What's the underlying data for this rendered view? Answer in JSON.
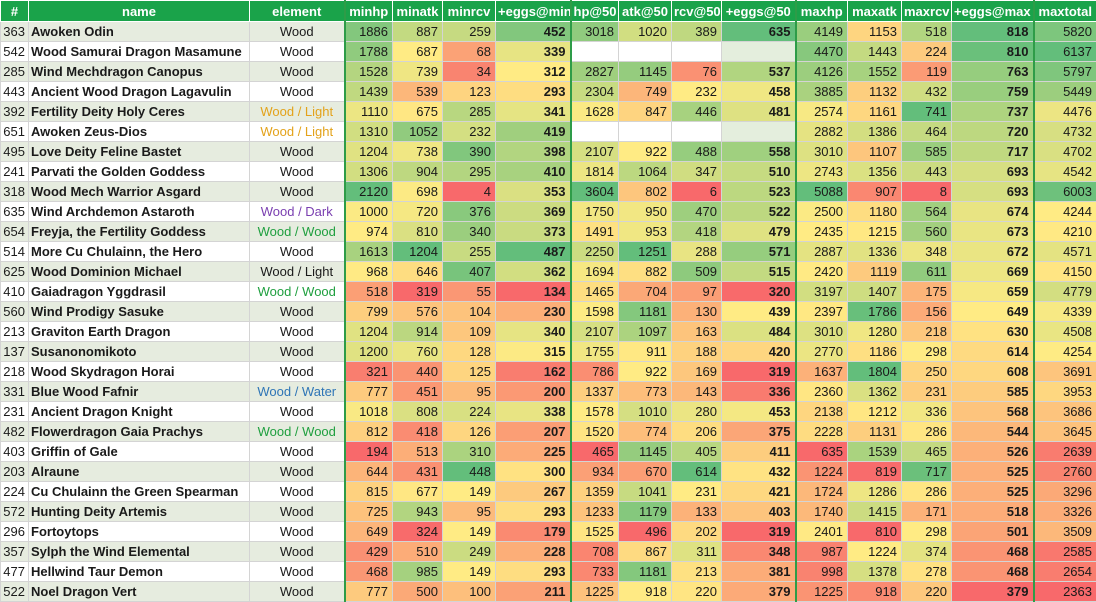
{
  "colors": {
    "header_bg": "#1aa34a",
    "header_text": "#ffffff",
    "scale_low": "#f8696b",
    "scale_mid": "#ffeb84",
    "scale_high": "#63be7b",
    "zebra": "#e6ecdf",
    "element_colors": {
      "Wood": "#1a1a1a",
      "Wood / Light": "#e3a21a",
      "Wood / Dark": "#7a3fb0",
      "Wood / Wood": "#1f9f3f",
      "Wood / Water": "#2e75b6"
    }
  },
  "columns": [
    "#",
    "name",
    "element",
    "minhp",
    "minatk",
    "minrcv",
    "+eggs@min",
    "hp@50",
    "atk@50",
    "rcv@50",
    "+eggs@50",
    "maxhp",
    "maxatk",
    "maxrcv",
    "+eggs@max",
    "maxtotal"
  ],
  "rows": [
    {
      "id": "363",
      "name": "Awoken Odin",
      "element": "Wood",
      "element_style": "Wood",
      "minhp": "1886",
      "minatk": "887",
      "minrcv": "259",
      "eggs_min": "452",
      "hp50": "3018",
      "atk50": "1020",
      "rcv50": "389",
      "eggs50": "635",
      "maxhp": "4149",
      "maxatk": "1153",
      "maxrcv": "518",
      "eggs_max": "818",
      "maxtotal": "5820"
    },
    {
      "id": "542",
      "name": "Wood Samurai Dragon Masamune",
      "element": "Wood",
      "element_style": "Wood",
      "minhp": "1788",
      "minatk": "687",
      "minrcv": "68",
      "eggs_min": "339",
      "hp50": "",
      "atk50": "",
      "rcv50": "",
      "eggs50": "",
      "maxhp": "4470",
      "maxatk": "1443",
      "maxrcv": "224",
      "eggs_max": "810",
      "maxtotal": "6137"
    },
    {
      "id": "285",
      "name": "Wind Mechdragon Canopus",
      "element": "Wood",
      "element_style": "Wood",
      "minhp": "1528",
      "minatk": "739",
      "minrcv": "34",
      "eggs_min": "312",
      "hp50": "2827",
      "atk50": "1145",
      "rcv50": "76",
      "eggs50": "537",
      "maxhp": "4126",
      "maxatk": "1552",
      "maxrcv": "119",
      "eggs_max": "763",
      "maxtotal": "5797"
    },
    {
      "id": "443",
      "name": "Ancient Wood Dragon Lagavulin",
      "element": "Wood",
      "element_style": "Wood",
      "minhp": "1439",
      "minatk": "539",
      "minrcv": "123",
      "eggs_min": "293",
      "hp50": "2304",
      "atk50": "749",
      "rcv50": "232",
      "eggs50": "458",
      "maxhp": "3885",
      "maxatk": "1132",
      "maxrcv": "432",
      "eggs_max": "759",
      "maxtotal": "5449"
    },
    {
      "id": "392",
      "name": "Fertility Deity Holy Ceres",
      "element": "Wood / Light",
      "element_style": "Wood / Light",
      "minhp": "1110",
      "minatk": "675",
      "minrcv": "285",
      "eggs_min": "341",
      "hp50": "1628",
      "atk50": "847",
      "rcv50": "446",
      "eggs50": "481",
      "maxhp": "2574",
      "maxatk": "1161",
      "maxrcv": "741",
      "eggs_max": "737",
      "maxtotal": "4476"
    },
    {
      "id": "651",
      "name": "Awoken Zeus-Dios",
      "element": "Wood / Light",
      "element_style": "Wood / Light",
      "minhp": "1310",
      "minatk": "1052",
      "minrcv": "232",
      "eggs_min": "419",
      "hp50": "",
      "atk50": "",
      "rcv50": "",
      "eggs50": "",
      "maxhp": "2882",
      "maxatk": "1386",
      "maxrcv": "464",
      "eggs_max": "720",
      "maxtotal": "4732"
    },
    {
      "id": "495",
      "name": "Love Deity Feline Bastet",
      "element": "Wood",
      "element_style": "Wood",
      "minhp": "1204",
      "minatk": "738",
      "minrcv": "390",
      "eggs_min": "398",
      "hp50": "2107",
      "atk50": "922",
      "rcv50": "488",
      "eggs50": "558",
      "maxhp": "3010",
      "maxatk": "1107",
      "maxrcv": "585",
      "eggs_max": "717",
      "maxtotal": "4702"
    },
    {
      "id": "241",
      "name": "Parvati the Golden Goddess",
      "element": "Wood",
      "element_style": "Wood",
      "minhp": "1306",
      "minatk": "904",
      "minrcv": "295",
      "eggs_min": "410",
      "hp50": "1814",
      "atk50": "1064",
      "rcv50": "347",
      "eggs50": "510",
      "maxhp": "2743",
      "maxatk": "1356",
      "maxrcv": "443",
      "eggs_max": "693",
      "maxtotal": "4542"
    },
    {
      "id": "318",
      "name": "Wood Mech Warrior Asgard",
      "element": "Wood",
      "element_style": "Wood",
      "minhp": "2120",
      "minatk": "698",
      "minrcv": "4",
      "eggs_min": "353",
      "hp50": "3604",
      "atk50": "802",
      "rcv50": "6",
      "eggs50": "523",
      "maxhp": "5088",
      "maxatk": "907",
      "maxrcv": "8",
      "eggs_max": "693",
      "maxtotal": "6003"
    },
    {
      "id": "635",
      "name": "Wind Archdemon Astaroth",
      "element": "Wood / Dark",
      "element_style": "Wood / Dark",
      "minhp": "1000",
      "minatk": "720",
      "minrcv": "376",
      "eggs_min": "369",
      "hp50": "1750",
      "atk50": "950",
      "rcv50": "470",
      "eggs50": "522",
      "maxhp": "2500",
      "maxatk": "1180",
      "maxrcv": "564",
      "eggs_max": "674",
      "maxtotal": "4244"
    },
    {
      "id": "654",
      "name": "Freyja, the Fertility Goddess",
      "element": "Wood / Wood",
      "element_style": "Wood / Wood",
      "minhp": "974",
      "minatk": "810",
      "minrcv": "340",
      "eggs_min": "373",
      "hp50": "1491",
      "atk50": "953",
      "rcv50": "418",
      "eggs50": "479",
      "maxhp": "2435",
      "maxatk": "1215",
      "maxrcv": "560",
      "eggs_max": "673",
      "maxtotal": "4210"
    },
    {
      "id": "514",
      "name": "More Cu Chulainn, the Hero",
      "element": "Wood",
      "element_style": "Wood",
      "minhp": "1613",
      "minatk": "1204",
      "minrcv": "255",
      "eggs_min": "487",
      "hp50": "2250",
      "atk50": "1251",
      "rcv50": "288",
      "eggs50": "571",
      "maxhp": "2887",
      "maxatk": "1336",
      "maxrcv": "348",
      "eggs_max": "672",
      "maxtotal": "4571"
    },
    {
      "id": "625",
      "name": "Wood Dominion Michael",
      "element": "Wood / Light",
      "element_style": "Wood",
      "minhp": "968",
      "minatk": "646",
      "minrcv": "407",
      "eggs_min": "362",
      "hp50": "1694",
      "atk50": "882",
      "rcv50": "509",
      "eggs50": "515",
      "maxhp": "2420",
      "maxatk": "1119",
      "maxrcv": "611",
      "eggs_max": "669",
      "maxtotal": "4150"
    },
    {
      "id": "410",
      "name": "Gaiadragon Yggdrasil",
      "element": "Wood / Wood",
      "element_style": "Wood / Wood",
      "minhp": "518",
      "minatk": "319",
      "minrcv": "55",
      "eggs_min": "134",
      "hp50": "1465",
      "atk50": "704",
      "rcv50": "97",
      "eggs50": "320",
      "maxhp": "3197",
      "maxatk": "1407",
      "maxrcv": "175",
      "eggs_max": "659",
      "maxtotal": "4779"
    },
    {
      "id": "560",
      "name": "Wind Prodigy Sasuke",
      "element": "Wood",
      "element_style": "Wood",
      "minhp": "799",
      "minatk": "576",
      "minrcv": "104",
      "eggs_min": "230",
      "hp50": "1598",
      "atk50": "1181",
      "rcv50": "130",
      "eggs50": "439",
      "maxhp": "2397",
      "maxatk": "1786",
      "maxrcv": "156",
      "eggs_max": "649",
      "maxtotal": "4339"
    },
    {
      "id": "213",
      "name": "Graviton Earth Dragon",
      "element": "Wood",
      "element_style": "Wood",
      "minhp": "1204",
      "minatk": "914",
      "minrcv": "109",
      "eggs_min": "340",
      "hp50": "2107",
      "atk50": "1097",
      "rcv50": "163",
      "eggs50": "484",
      "maxhp": "3010",
      "maxatk": "1280",
      "maxrcv": "218",
      "eggs_max": "630",
      "maxtotal": "4508"
    },
    {
      "id": "137",
      "name": "Susanonomikoto",
      "element": "Wood",
      "element_style": "Wood",
      "minhp": "1200",
      "minatk": "760",
      "minrcv": "128",
      "eggs_min": "315",
      "hp50": "1755",
      "atk50": "911",
      "rcv50": "188",
      "eggs50": "420",
      "maxhp": "2770",
      "maxatk": "1186",
      "maxrcv": "298",
      "eggs_max": "614",
      "maxtotal": "4254"
    },
    {
      "id": "218",
      "name": "Wood Skydragon Horai",
      "element": "Wood",
      "element_style": "Wood",
      "minhp": "321",
      "minatk": "440",
      "minrcv": "125",
      "eggs_min": "162",
      "hp50": "786",
      "atk50": "922",
      "rcv50": "169",
      "eggs50": "319",
      "maxhp": "1637",
      "maxatk": "1804",
      "maxrcv": "250",
      "eggs_max": "608",
      "maxtotal": "3691"
    },
    {
      "id": "331",
      "name": "Blue Wood Fafnir",
      "element": "Wood / Water",
      "element_style": "Wood / Water",
      "minhp": "777",
      "minatk": "451",
      "minrcv": "95",
      "eggs_min": "200",
      "hp50": "1337",
      "atk50": "773",
      "rcv50": "143",
      "eggs50": "336",
      "maxhp": "2360",
      "maxatk": "1362",
      "maxrcv": "231",
      "eggs_max": "585",
      "maxtotal": "3953"
    },
    {
      "id": "231",
      "name": "Ancient Dragon Knight",
      "element": "Wood",
      "element_style": "Wood",
      "minhp": "1018",
      "minatk": "808",
      "minrcv": "224",
      "eggs_min": "338",
      "hp50": "1578",
      "atk50": "1010",
      "rcv50": "280",
      "eggs50": "453",
      "maxhp": "2138",
      "maxatk": "1212",
      "maxrcv": "336",
      "eggs_max": "568",
      "maxtotal": "3686"
    },
    {
      "id": "482",
      "name": "Flowerdragon Gaia Prachys",
      "element": "Wood / Wood",
      "element_style": "Wood / Wood",
      "minhp": "812",
      "minatk": "418",
      "minrcv": "126",
      "eggs_min": "207",
      "hp50": "1520",
      "atk50": "774",
      "rcv50": "206",
      "eggs50": "375",
      "maxhp": "2228",
      "maxatk": "1131",
      "maxrcv": "286",
      "eggs_max": "544",
      "maxtotal": "3645"
    },
    {
      "id": "403",
      "name": "Griffin of Gale",
      "element": "Wood",
      "element_style": "Wood",
      "minhp": "194",
      "minatk": "513",
      "minrcv": "310",
      "eggs_min": "225",
      "hp50": "465",
      "atk50": "1145",
      "rcv50": "405",
      "eggs50": "411",
      "maxhp": "635",
      "maxatk": "1539",
      "maxrcv": "465",
      "eggs_max": "526",
      "maxtotal": "2639"
    },
    {
      "id": "203",
      "name": "Alraune",
      "element": "Wood",
      "element_style": "Wood",
      "minhp": "644",
      "minatk": "431",
      "minrcv": "448",
      "eggs_min": "300",
      "hp50": "934",
      "atk50": "670",
      "rcv50": "614",
      "eggs50": "432",
      "maxhp": "1224",
      "maxatk": "819",
      "maxrcv": "717",
      "eggs_max": "525",
      "maxtotal": "2760"
    },
    {
      "id": "224",
      "name": "Cu Chulainn the Green Spearman",
      "element": "Wood",
      "element_style": "Wood",
      "minhp": "815",
      "minatk": "677",
      "minrcv": "149",
      "eggs_min": "267",
      "hp50": "1359",
      "atk50": "1041",
      "rcv50": "231",
      "eggs50": "421",
      "maxhp": "1724",
      "maxatk": "1286",
      "maxrcv": "286",
      "eggs_max": "525",
      "maxtotal": "3296"
    },
    {
      "id": "572",
      "name": "Hunting Deity Artemis",
      "element": "Wood",
      "element_style": "Wood",
      "minhp": "725",
      "minatk": "943",
      "minrcv": "95",
      "eggs_min": "293",
      "hp50": "1233",
      "atk50": "1179",
      "rcv50": "133",
      "eggs50": "403",
      "maxhp": "1740",
      "maxatk": "1415",
      "maxrcv": "171",
      "eggs_max": "518",
      "maxtotal": "3326"
    },
    {
      "id": "296",
      "name": "Fortoytops",
      "element": "Wood",
      "element_style": "Wood",
      "minhp": "649",
      "minatk": "324",
      "minrcv": "149",
      "eggs_min": "179",
      "hp50": "1525",
      "atk50": "496",
      "rcv50": "202",
      "eggs50": "319",
      "maxhp": "2401",
      "maxatk": "810",
      "maxrcv": "298",
      "eggs_max": "501",
      "maxtotal": "3509"
    },
    {
      "id": "357",
      "name": "Sylph the Wind Elemental",
      "element": "Wood",
      "element_style": "Wood",
      "minhp": "429",
      "minatk": "510",
      "minrcv": "249",
      "eggs_min": "228",
      "hp50": "708",
      "atk50": "867",
      "rcv50": "311",
      "eggs50": "348",
      "maxhp": "987",
      "maxatk": "1224",
      "maxrcv": "374",
      "eggs_max": "468",
      "maxtotal": "2585"
    },
    {
      "id": "477",
      "name": "Hellwind Taur Demon",
      "element": "Wood",
      "element_style": "Wood",
      "minhp": "468",
      "minatk": "985",
      "minrcv": "149",
      "eggs_min": "293",
      "hp50": "733",
      "atk50": "1181",
      "rcv50": "213",
      "eggs50": "381",
      "maxhp": "998",
      "maxatk": "1378",
      "maxrcv": "278",
      "eggs_max": "468",
      "maxtotal": "2654"
    },
    {
      "id": "522",
      "name": "Noel Dragon Vert",
      "element": "Wood",
      "element_style": "Wood",
      "minhp": "777",
      "minatk": "500",
      "minrcv": "100",
      "eggs_min": "211",
      "hp50": "1225",
      "atk50": "918",
      "rcv50": "220",
      "eggs50": "379",
      "maxhp": "1225",
      "maxatk": "918",
      "maxrcv": "220",
      "eggs_max": "379",
      "maxtotal": "2363"
    }
  ]
}
